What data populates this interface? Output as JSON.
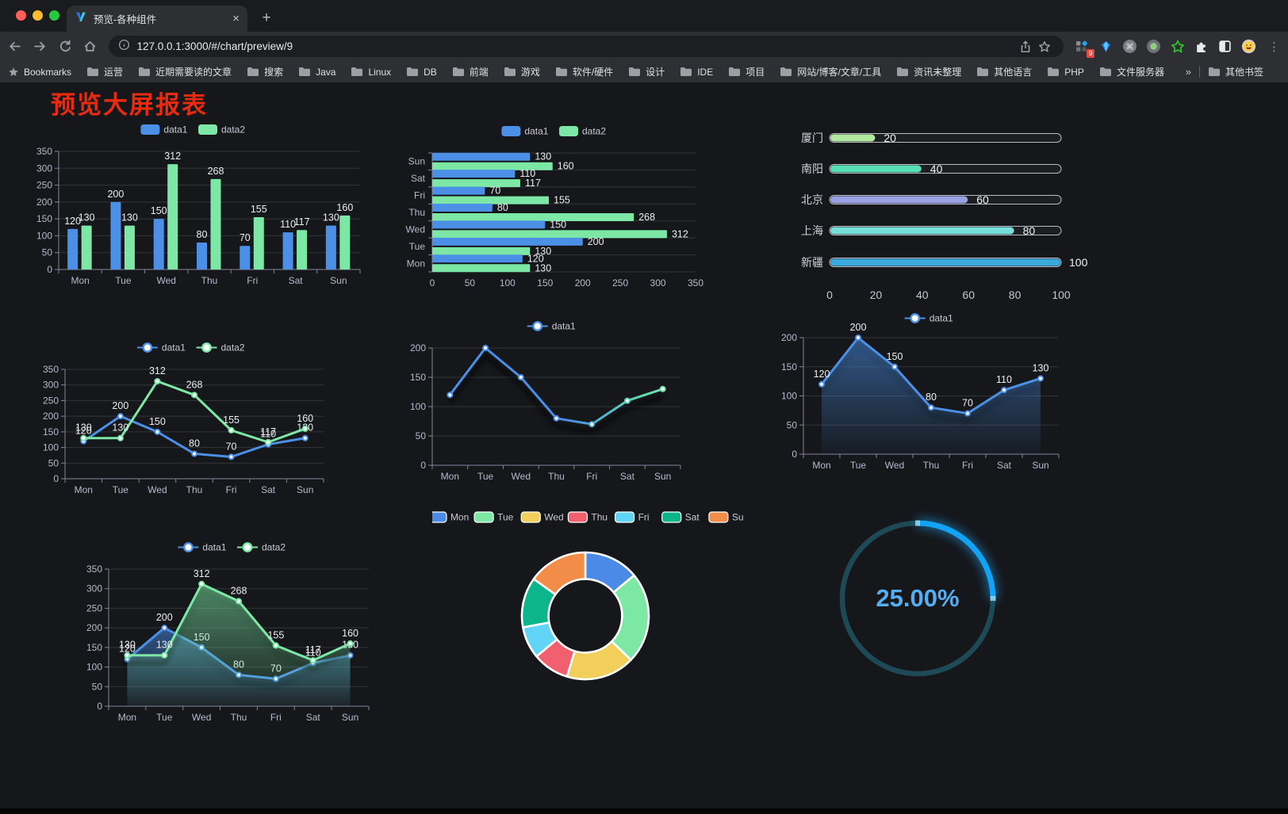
{
  "browser": {
    "tab_title": "预览-各种组件",
    "tab_close": "×",
    "new_tab": "+",
    "url": "127.0.0.1:3000/#/chart/preview/9",
    "menu": "⋮",
    "extension_badge": "9",
    "traffic_colors": [
      "#ff5f57",
      "#febc2e",
      "#28c840"
    ],
    "bookmarks_bar": {
      "root_label": "Bookmarks",
      "folders": [
        "运营",
        "近期需要读的文章",
        "搜索",
        "Java",
        "Linux",
        "DB",
        "前端",
        "游戏",
        "软件/硬件",
        "设计",
        "IDE",
        "项目",
        "网站/博客/文章/工具",
        "资讯未整理",
        "其他语言",
        "PHP",
        "文件服务器"
      ],
      "overflow": "»",
      "other_label": "其他书签"
    }
  },
  "page": {
    "title": "预览大屏报表",
    "title_color": "#e92a0e"
  },
  "chart_data": [
    {
      "id": "bar-grouped",
      "type": "bar",
      "categories": [
        "Mon",
        "Tue",
        "Wed",
        "Thu",
        "Fri",
        "Sat",
        "Sun"
      ],
      "series": [
        {
          "name": "data1",
          "color": "#4b90e6",
          "values": [
            120,
            200,
            150,
            80,
            70,
            110,
            130
          ]
        },
        {
          "name": "data2",
          "color": "#7de8a6",
          "values": [
            130,
            130,
            312,
            268,
            155,
            117,
            160
          ]
        }
      ],
      "ylim": [
        0,
        350
      ],
      "yticks": [
        0,
        50,
        100,
        150,
        200,
        250,
        300,
        350
      ],
      "legend_position": "top",
      "grid": true,
      "show_labels": true
    },
    {
      "id": "bar-horizontal",
      "type": "bar",
      "orientation": "horizontal",
      "categories_top_to_bottom": [
        "Sun",
        "Sat",
        "Fri",
        "Thu",
        "Wed",
        "Tue",
        "Mon"
      ],
      "series": [
        {
          "name": "data1",
          "color": "#4b90e6",
          "values": [
            130,
            110,
            70,
            80,
            150,
            200,
            120
          ]
        },
        {
          "name": "data2",
          "color": "#7de8a6",
          "values": [
            160,
            117,
            155,
            268,
            312,
            130,
            130
          ]
        }
      ],
      "xlim": [
        0,
        350
      ],
      "xticks": [
        0,
        50,
        100,
        150,
        200,
        250,
        300,
        350
      ],
      "legend_position": "top",
      "show_labels": true
    },
    {
      "id": "capsule-progress",
      "type": "bar",
      "orientation": "horizontal-capsule",
      "categories": [
        "厦门",
        "南阳",
        "北京",
        "上海",
        "新疆"
      ],
      "values": [
        20,
        40,
        60,
        80,
        100
      ],
      "colors": [
        "#b2e9a1",
        "#57dfb4",
        "#99a0e4",
        "#76dfd9",
        "#3aaade"
      ],
      "xlim": [
        0,
        100
      ],
      "xticks": [
        0,
        20,
        40,
        60,
        80,
        100
      ],
      "track_border_color": "#d8d9df",
      "show_labels": true
    },
    {
      "id": "line-two-series",
      "type": "line",
      "categories": [
        "Mon",
        "Tue",
        "Wed",
        "Thu",
        "Fri",
        "Sat",
        "Sun"
      ],
      "series": [
        {
          "name": "data1",
          "color": "#4b90e6",
          "values": [
            120,
            200,
            150,
            80,
            70,
            110,
            130
          ]
        },
        {
          "name": "data2",
          "color": "#7de8a6",
          "values": [
            130,
            130,
            312,
            268,
            155,
            117,
            160
          ]
        }
      ],
      "ylim": [
        0,
        350
      ],
      "yticks": [
        0,
        50,
        100,
        150,
        200,
        250,
        300,
        350
      ],
      "legend_position": "top",
      "show_labels": true
    },
    {
      "id": "line-gradient",
      "type": "line",
      "categories": [
        "Mon",
        "Tue",
        "Wed",
        "Thu",
        "Fri",
        "Sat",
        "Sun"
      ],
      "series": [
        {
          "name": "data1",
          "gradient": [
            "#4a8fe8",
            "#5bd4b4",
            "#7de8a6"
          ],
          "values": [
            120,
            200,
            150,
            80,
            70,
            110,
            130
          ]
        }
      ],
      "ylim": [
        0,
        200
      ],
      "yticks": [
        0,
        50,
        100,
        150,
        200
      ],
      "legend_position": "top",
      "show_labels": false,
      "shadow": true
    },
    {
      "id": "area-single",
      "type": "area",
      "categories": [
        "Mon",
        "Tue",
        "Wed",
        "Thu",
        "Fri",
        "Sat",
        "Sun"
      ],
      "series": [
        {
          "name": "data1",
          "color": "#4b90e6",
          "area": true,
          "values": [
            120,
            200,
            150,
            80,
            70,
            110,
            130
          ]
        }
      ],
      "ylim": [
        0,
        200
      ],
      "yticks": [
        0,
        50,
        100,
        150,
        200
      ],
      "legend_position": "top",
      "show_labels": true,
      "shadow": true
    },
    {
      "id": "area-two-series",
      "type": "area",
      "categories": [
        "Mon",
        "Tue",
        "Wed",
        "Thu",
        "Fri",
        "Sat",
        "Sun"
      ],
      "series": [
        {
          "name": "data1",
          "color": "#4b90e6",
          "area": true,
          "values": [
            120,
            200,
            150,
            80,
            70,
            110,
            130
          ]
        },
        {
          "name": "data2",
          "color": "#7de8a6",
          "area": true,
          "values": [
            130,
            130,
            312,
            268,
            155,
            117,
            160
          ]
        }
      ],
      "ylim": [
        0,
        350
      ],
      "yticks": [
        0,
        50,
        100,
        150,
        200,
        250,
        300,
        350
      ],
      "legend_position": "top",
      "show_labels": true,
      "shadow": true
    },
    {
      "id": "donut",
      "type": "pie",
      "categories": [
        "Mon",
        "Tue",
        "Wed",
        "Thu",
        "Fri",
        "Sat",
        "Sun"
      ],
      "values": [
        120,
        200,
        150,
        80,
        70,
        110,
        130
      ],
      "colors": [
        "#4c8ae8",
        "#7ce8a4",
        "#f2cf5a",
        "#f25f6e",
        "#62d4f5",
        "#0cb58a",
        "#f28d49"
      ],
      "legend_position": "top",
      "inner_radius_ratio": 0.58,
      "border_color": "#ffffff"
    },
    {
      "id": "gauge",
      "type": "gauge",
      "value": 25,
      "label": "25.00%",
      "track_color": "#1d4a56",
      "progress_color": "#12a3f4",
      "text_color": "#55aef2"
    }
  ]
}
